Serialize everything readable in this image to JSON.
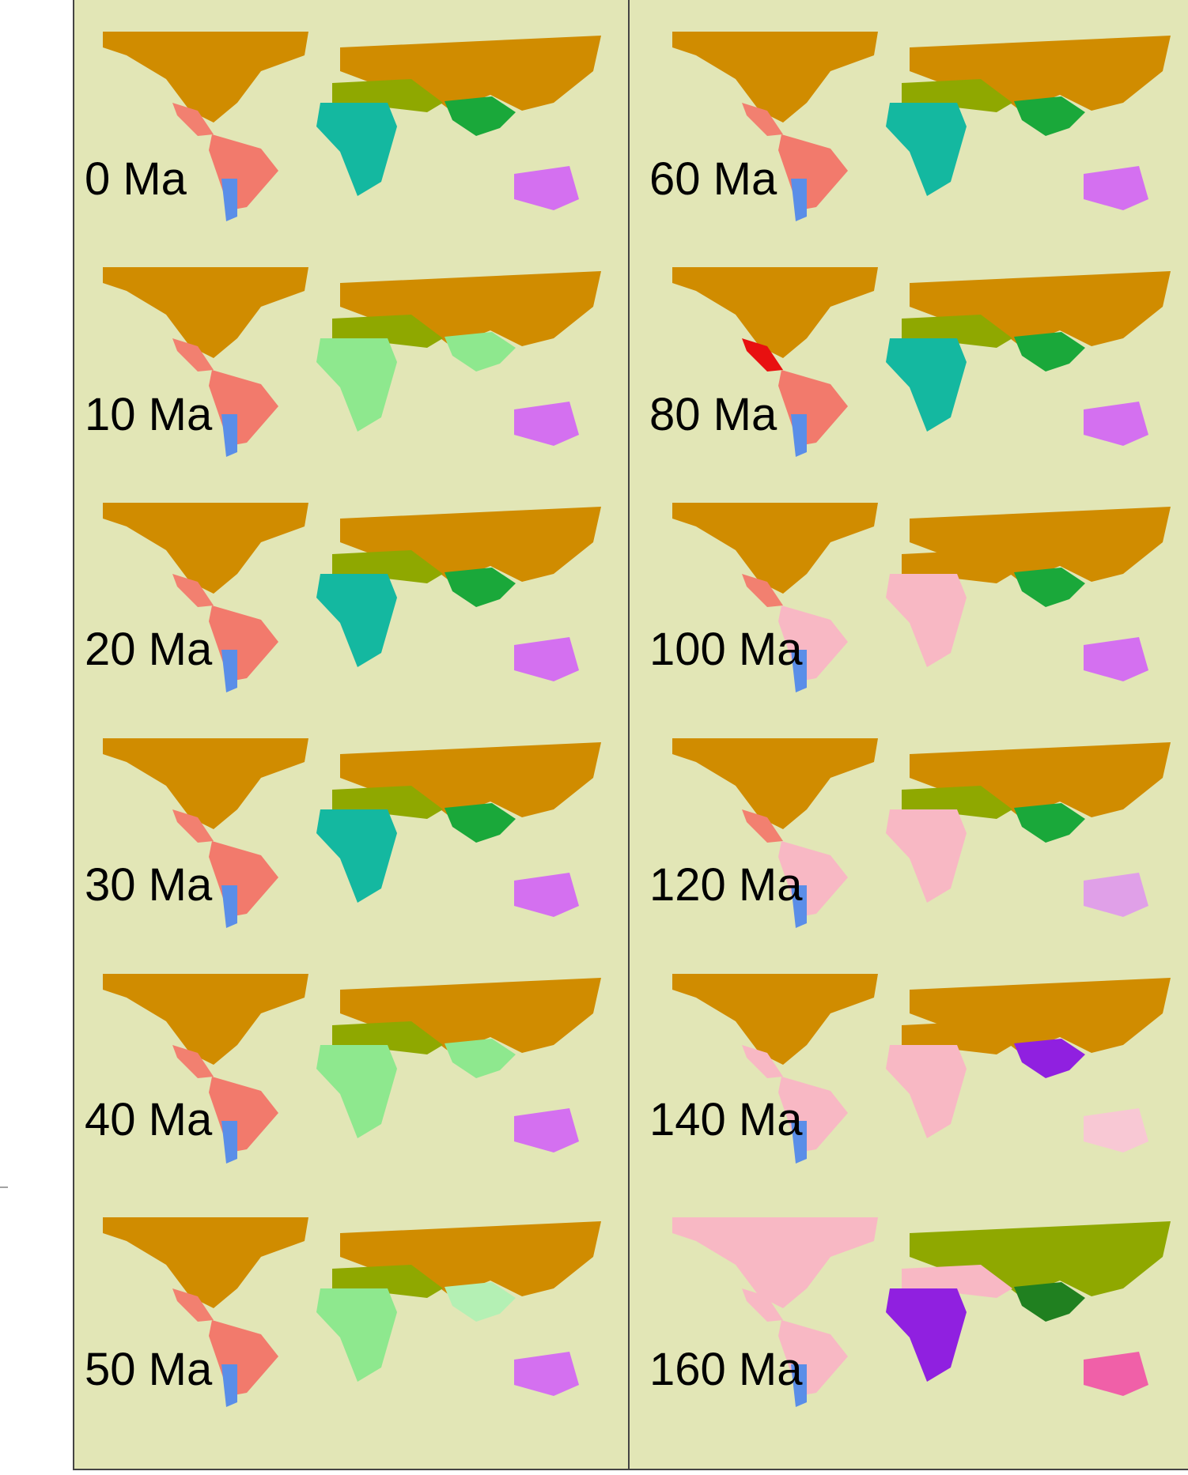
{
  "panels": {
    "left": [
      "0 Ma",
      "10 Ma",
      "20 Ma",
      "30 Ma",
      "40 Ma",
      "50 Ma"
    ],
    "right": [
      "60 Ma",
      "80 Ma",
      "100 Ma",
      "120 Ma",
      "140 Ma",
      "160 Ma"
    ]
  }
}
